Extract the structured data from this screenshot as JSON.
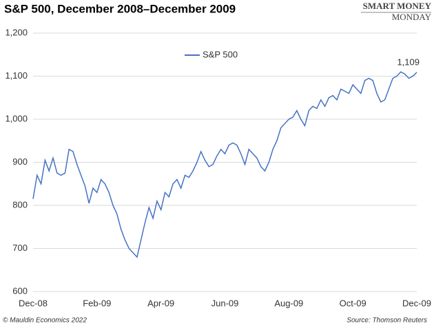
{
  "chart_data": {
    "type": "line",
    "title": "S&P 500, December 2008–December 2009",
    "logo": [
      "SMART MONEY",
      "MONDAY"
    ],
    "footer_left": "© Mauldin Economics 2022",
    "footer_right": "Source: Thomson Reuters",
    "annotation": "1,109",
    "grid": true,
    "legend": "top",
    "series": [
      {
        "name": "S&P 500",
        "color": "#4472c4",
        "values": [
          815,
          870,
          850,
          905,
          880,
          910,
          875,
          870,
          875,
          930,
          925,
          895,
          870,
          845,
          805,
          840,
          830,
          860,
          850,
          830,
          800,
          780,
          745,
          720,
          700,
          690,
          680,
          720,
          760,
          795,
          770,
          810,
          790,
          830,
          820,
          850,
          860,
          840,
          870,
          865,
          880,
          900,
          925,
          905,
          890,
          895,
          915,
          930,
          920,
          940,
          945,
          940,
          920,
          895,
          930,
          920,
          910,
          890,
          880,
          900,
          930,
          950,
          980,
          990,
          1000,
          1005,
          1020,
          1000,
          985,
          1020,
          1030,
          1025,
          1045,
          1030,
          1050,
          1055,
          1045,
          1070,
          1065,
          1060,
          1080,
          1070,
          1060,
          1090,
          1095,
          1090,
          1060,
          1040,
          1045,
          1070,
          1095,
          1100,
          1110,
          1105,
          1095,
          1100,
          1109
        ]
      }
    ],
    "xlim": [
      0,
      96
    ],
    "xticks": [
      {
        "value": 0,
        "label": "Dec-08"
      },
      {
        "value": 16,
        "label": "Feb-09"
      },
      {
        "value": 32,
        "label": "Apr-09"
      },
      {
        "value": 48,
        "label": "Jun-09"
      },
      {
        "value": 64,
        "label": "Aug-09"
      },
      {
        "value": 80,
        "label": "Oct-09"
      },
      {
        "value": 96,
        "label": "Dec-09"
      }
    ],
    "ylim": [
      600,
      1200
    ],
    "yticks": [
      600,
      700,
      800,
      900,
      {
        "value": 1000,
        "label": "1,000"
      },
      {
        "value": 1100,
        "label": "1,100"
      },
      {
        "value": 1200,
        "label": "1,200"
      }
    ]
  }
}
